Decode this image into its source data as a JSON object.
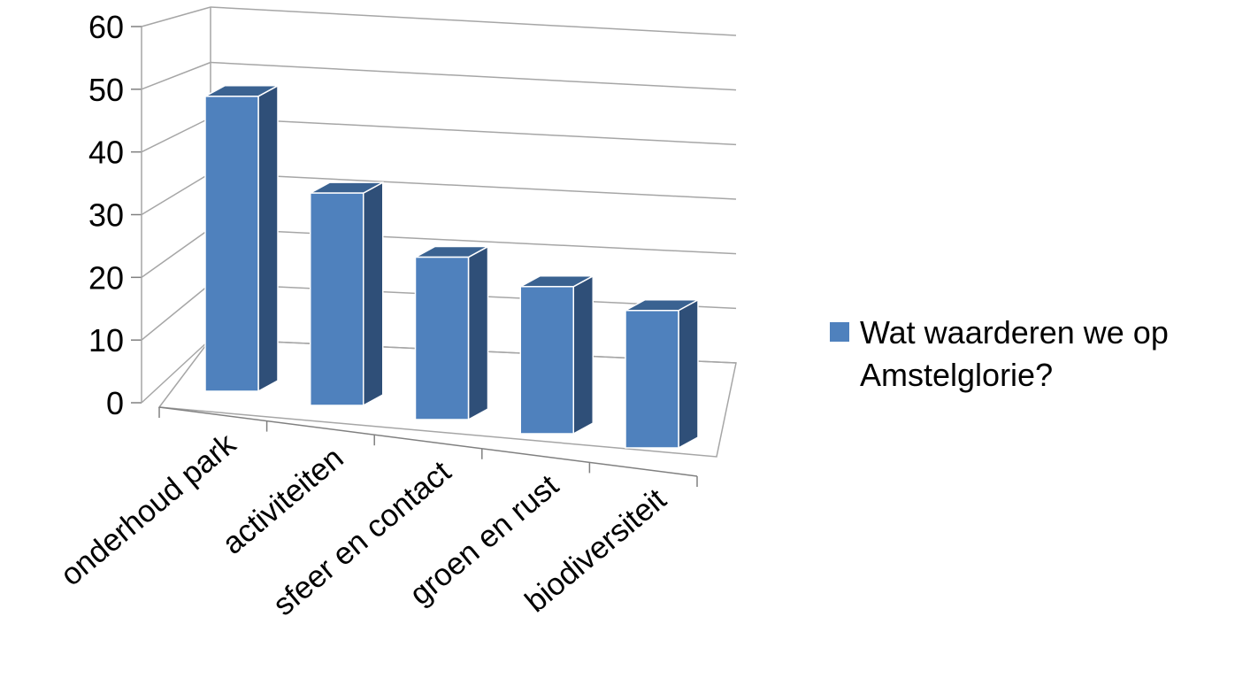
{
  "chart_data": {
    "type": "bar",
    "categories": [
      "onderhoud park",
      "activiteiten",
      "sfeer en contact",
      "groen en rust",
      "biodiversiteit"
    ],
    "series": [
      {
        "name": "Wat waarderen we op Amstelglorie?",
        "values": [
          51,
          36,
          27,
          24,
          22
        ]
      }
    ],
    "legend_lines": [
      "Wat waarderen we op",
      "Amstelglorie?"
    ],
    "yticks": [
      "0",
      "10",
      "20",
      "30",
      "40",
      "50",
      "60"
    ],
    "ylim": [
      0,
      60
    ],
    "title": "",
    "xlabel": "",
    "ylabel": "",
    "grid": true,
    "legend_position": "right",
    "colors": {
      "bar_front": "#4f81bd",
      "bar_side": "#2f4f78",
      "bar_top": "#3a6291",
      "grid": "#a6a6a6",
      "axis": "#808080"
    }
  }
}
